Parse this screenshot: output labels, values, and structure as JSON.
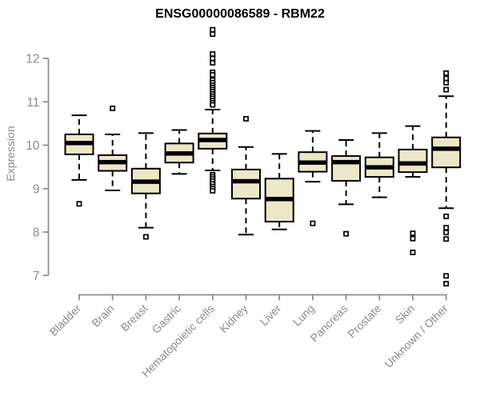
{
  "colors": {
    "axis": "#8B8B8B",
    "tick_label": "#8B8B8B",
    "title": "#000000",
    "box_fill": "#EDE7C9",
    "box_stroke": "#000000",
    "median": "#000000",
    "whisker": "#000000",
    "outlier_fill": "#FFFFFF",
    "background": "#FFFFFF"
  },
  "chart_data": {
    "type": "boxplot",
    "title": "ENSG00000086589 - RBM22",
    "xlabel": "",
    "ylabel": "Expression",
    "ylim": [
      7,
      12
    ],
    "yticks": [
      7,
      8,
      9,
      10,
      11,
      12
    ],
    "grid": "off",
    "legend": "none",
    "categories": [
      "Bladder",
      "Brain",
      "Breast",
      "Gastric",
      "Hematopoietic cells",
      "Kidney",
      "Liver",
      "Lung",
      "Pancreas",
      "Prostate",
      "Skin",
      "Unknown / Other"
    ],
    "series": [
      {
        "name": "Bladder",
        "whisker_low": 9.2,
        "q1": 9.79,
        "median": 10.05,
        "q3": 10.25,
        "whisker_high": 10.69,
        "outliers": [
          8.65
        ]
      },
      {
        "name": "Brain",
        "whisker_low": 8.96,
        "q1": 9.41,
        "median": 9.61,
        "q3": 9.77,
        "whisker_high": 10.25,
        "outliers": [
          10.85
        ]
      },
      {
        "name": "Breast",
        "whisker_low": 8.1,
        "q1": 8.89,
        "median": 9.16,
        "q3": 9.46,
        "whisker_high": 10.28,
        "outliers": [
          7.89
        ]
      },
      {
        "name": "Gastric",
        "whisker_low": 9.34,
        "q1": 9.6,
        "median": 9.81,
        "q3": 10.04,
        "whisker_high": 10.35,
        "outliers": []
      },
      {
        "name": "Hematopoietic cells",
        "whisker_low": 9.42,
        "q1": 9.92,
        "median": 10.12,
        "q3": 10.27,
        "whisker_high": 10.82,
        "outliers": [
          12.66,
          12.56,
          12.1,
          12.0,
          11.9,
          11.68,
          11.62,
          11.5,
          11.44,
          11.38,
          11.33,
          11.28,
          11.23,
          11.18,
          11.13,
          11.08,
          11.03,
          10.98,
          10.93,
          9.32,
          9.27,
          9.22,
          9.17,
          9.11,
          9.05,
          9.0,
          8.95
        ]
      },
      {
        "name": "Kidney",
        "whisker_low": 7.94,
        "q1": 8.77,
        "median": 9.17,
        "q3": 9.44,
        "whisker_high": 9.96,
        "outliers": [
          10.61
        ]
      },
      {
        "name": "Liver",
        "whisker_low": 8.06,
        "q1": 8.24,
        "median": 8.76,
        "q3": 9.23,
        "whisker_high": 9.8,
        "outliers": []
      },
      {
        "name": "Lung",
        "whisker_low": 9.16,
        "q1": 9.39,
        "median": 9.6,
        "q3": 9.84,
        "whisker_high": 10.33,
        "outliers": [
          8.2
        ]
      },
      {
        "name": "Pancreas",
        "whisker_low": 8.64,
        "q1": 9.18,
        "median": 9.61,
        "q3": 9.75,
        "whisker_high": 10.12,
        "outliers": [
          7.96
        ]
      },
      {
        "name": "Prostate",
        "whisker_low": 8.8,
        "q1": 9.27,
        "median": 9.49,
        "q3": 9.72,
        "whisker_high": 10.28,
        "outliers": []
      },
      {
        "name": "Skin",
        "whisker_low": 9.27,
        "q1": 9.38,
        "median": 9.58,
        "q3": 9.9,
        "whisker_high": 10.44,
        "outliers": [
          7.97,
          7.85,
          7.53
        ]
      },
      {
        "name": "Unknown / Other",
        "whisker_low": 8.55,
        "q1": 9.49,
        "median": 9.92,
        "q3": 10.18,
        "whisker_high": 11.13,
        "outliers": [
          11.66,
          11.54,
          11.44,
          11.28,
          8.36,
          8.1,
          7.99,
          7.84,
          6.99,
          6.81
        ]
      }
    ]
  }
}
